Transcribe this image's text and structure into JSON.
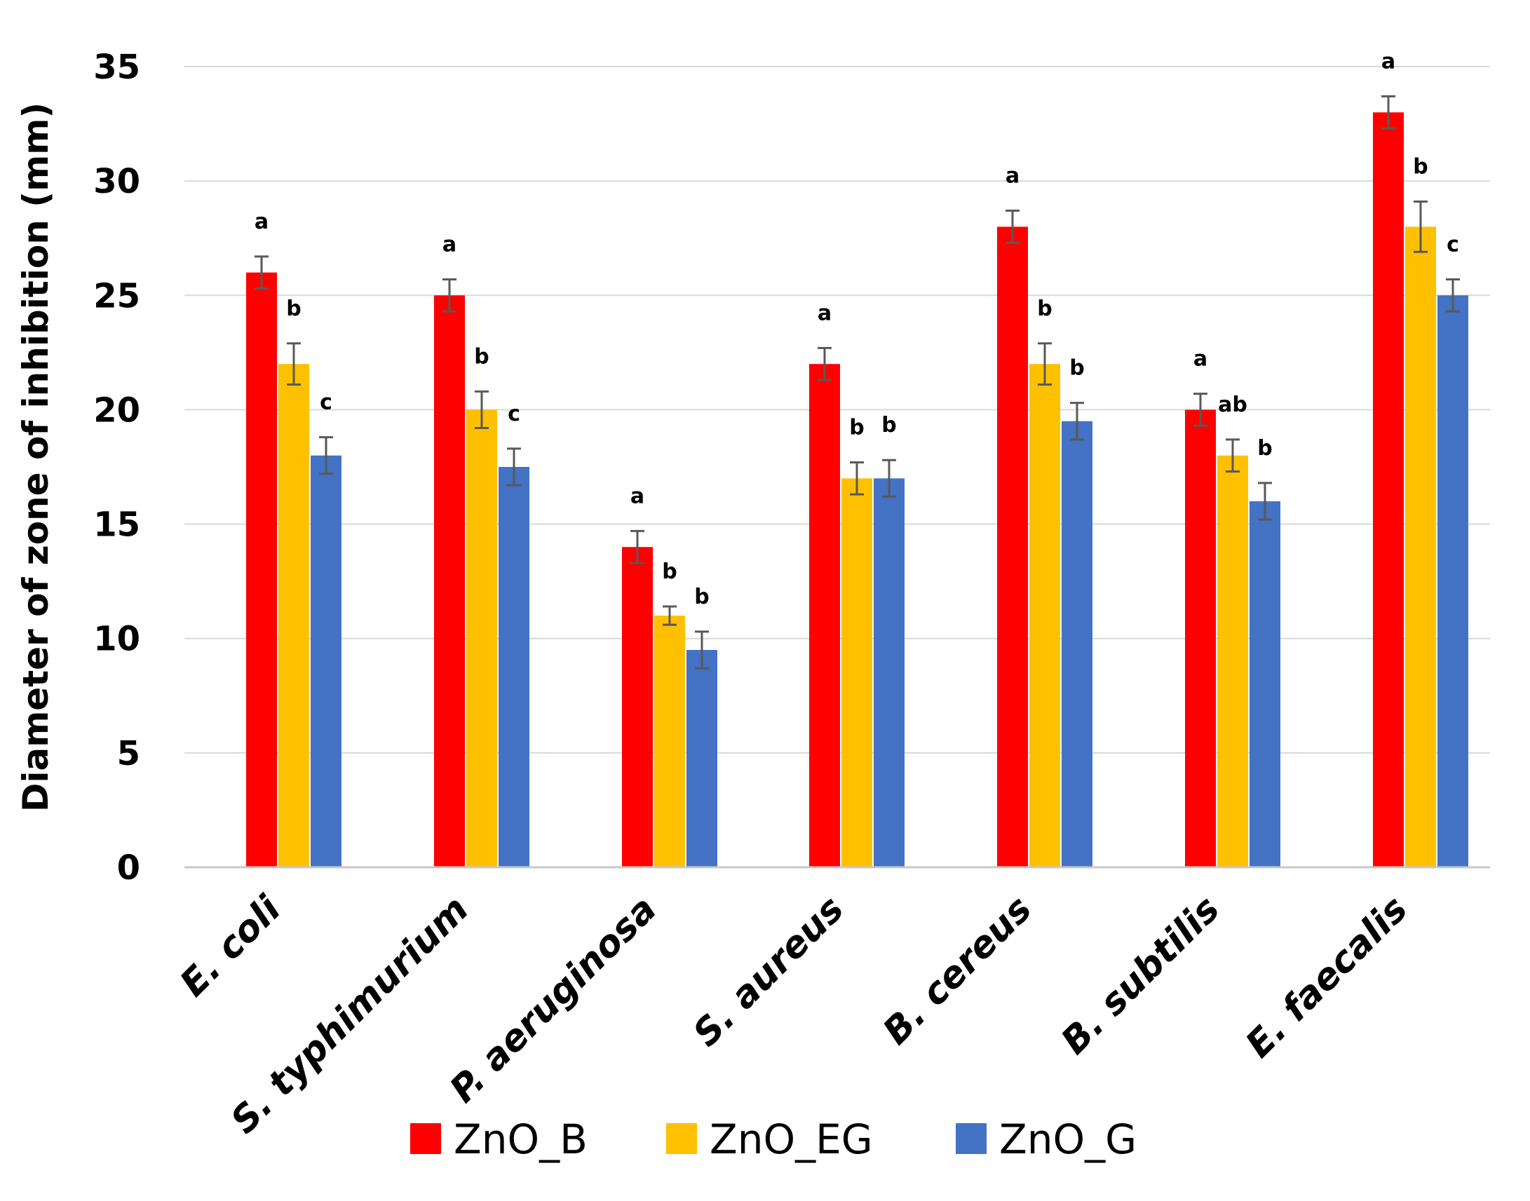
{
  "chart_data": {
    "type": "bar",
    "title": "",
    "xlabel": "",
    "ylabel": "Diameter of zone of inhibition (mm)",
    "ylim": [
      0,
      35
    ],
    "yticks": [
      0,
      5,
      10,
      15,
      20,
      25,
      30,
      35
    ],
    "ytick_labels": [
      "0",
      "5",
      "10",
      "15",
      "20",
      "25",
      "30",
      "35"
    ],
    "grid": true,
    "legend_position": "bottom",
    "categories": [
      "E. coli",
      "S. typhimurium",
      "P. aeruginosa",
      "S. aureus",
      "B. cereus",
      "B. subtilis",
      "E. faecalis"
    ],
    "series": [
      {
        "name": "ZnO_B",
        "color": "#ff0000",
        "values": [
          26,
          25,
          14,
          22,
          28,
          20,
          33
        ],
        "errors": [
          0.7,
          0.7,
          0.7,
          0.7,
          0.7,
          0.7,
          0.7
        ],
        "letters": [
          "a",
          "a",
          "a",
          "a",
          "a",
          "a",
          "a"
        ]
      },
      {
        "name": "ZnO_EG",
        "color": "#ffc000",
        "values": [
          22,
          20,
          11,
          17,
          22,
          18,
          28
        ],
        "errors": [
          0.9,
          0.8,
          0.4,
          0.7,
          0.9,
          0.7,
          1.1
        ],
        "letters": [
          "b",
          "b",
          "b",
          "b",
          "b",
          "ab",
          "b"
        ]
      },
      {
        "name": "ZnO_G",
        "color": "#4472c4",
        "values": [
          18,
          17.5,
          9.5,
          17,
          19.5,
          16,
          25
        ],
        "errors": [
          0.8,
          0.8,
          0.8,
          0.8,
          0.8,
          0.8,
          0.7
        ],
        "letters": [
          "c",
          "c",
          "b",
          "b",
          "b",
          "b",
          "c"
        ]
      }
    ]
  }
}
